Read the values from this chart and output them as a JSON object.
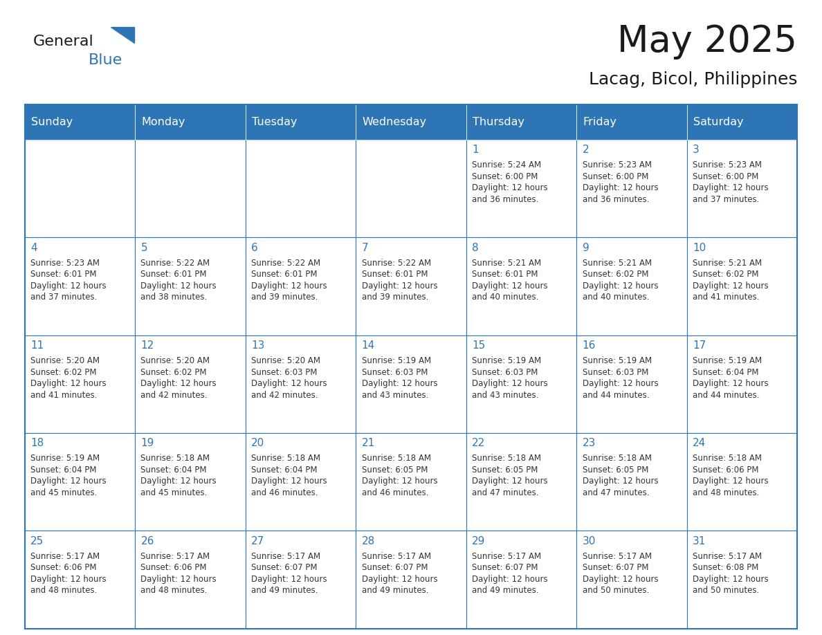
{
  "title": "May 2025",
  "subtitle": "Lacag, Bicol, Philippines",
  "days_of_week": [
    "Sunday",
    "Monday",
    "Tuesday",
    "Wednesday",
    "Thursday",
    "Friday",
    "Saturday"
  ],
  "header_bg": "#2E75B6",
  "header_text": "#FFFFFF",
  "cell_bg_light": "#FFFFFF",
  "grid_line_color": "#2E75B6",
  "day_number_color": "#2E75B6",
  "cell_text_color": "#333333",
  "title_color": "#1a1a1a",
  "weeks": [
    [
      {
        "day": null,
        "sunrise": null,
        "sunset": null,
        "daylight": null
      },
      {
        "day": null,
        "sunrise": null,
        "sunset": null,
        "daylight": null
      },
      {
        "day": null,
        "sunrise": null,
        "sunset": null,
        "daylight": null
      },
      {
        "day": null,
        "sunrise": null,
        "sunset": null,
        "daylight": null
      },
      {
        "day": 1,
        "sunrise": "5:24 AM",
        "sunset": "6:00 PM",
        "daylight": "12 hours and 36 minutes."
      },
      {
        "day": 2,
        "sunrise": "5:23 AM",
        "sunset": "6:00 PM",
        "daylight": "12 hours and 36 minutes."
      },
      {
        "day": 3,
        "sunrise": "5:23 AM",
        "sunset": "6:00 PM",
        "daylight": "12 hours and 37 minutes."
      }
    ],
    [
      {
        "day": 4,
        "sunrise": "5:23 AM",
        "sunset": "6:01 PM",
        "daylight": "12 hours and 37 minutes."
      },
      {
        "day": 5,
        "sunrise": "5:22 AM",
        "sunset": "6:01 PM",
        "daylight": "12 hours and 38 minutes."
      },
      {
        "day": 6,
        "sunrise": "5:22 AM",
        "sunset": "6:01 PM",
        "daylight": "12 hours and 39 minutes."
      },
      {
        "day": 7,
        "sunrise": "5:22 AM",
        "sunset": "6:01 PM",
        "daylight": "12 hours and 39 minutes."
      },
      {
        "day": 8,
        "sunrise": "5:21 AM",
        "sunset": "6:01 PM",
        "daylight": "12 hours and 40 minutes."
      },
      {
        "day": 9,
        "sunrise": "5:21 AM",
        "sunset": "6:02 PM",
        "daylight": "12 hours and 40 minutes."
      },
      {
        "day": 10,
        "sunrise": "5:21 AM",
        "sunset": "6:02 PM",
        "daylight": "12 hours and 41 minutes."
      }
    ],
    [
      {
        "day": 11,
        "sunrise": "5:20 AM",
        "sunset": "6:02 PM",
        "daylight": "12 hours and 41 minutes."
      },
      {
        "day": 12,
        "sunrise": "5:20 AM",
        "sunset": "6:02 PM",
        "daylight": "12 hours and 42 minutes."
      },
      {
        "day": 13,
        "sunrise": "5:20 AM",
        "sunset": "6:03 PM",
        "daylight": "12 hours and 42 minutes."
      },
      {
        "day": 14,
        "sunrise": "5:19 AM",
        "sunset": "6:03 PM",
        "daylight": "12 hours and 43 minutes."
      },
      {
        "day": 15,
        "sunrise": "5:19 AM",
        "sunset": "6:03 PM",
        "daylight": "12 hours and 43 minutes."
      },
      {
        "day": 16,
        "sunrise": "5:19 AM",
        "sunset": "6:03 PM",
        "daylight": "12 hours and 44 minutes."
      },
      {
        "day": 17,
        "sunrise": "5:19 AM",
        "sunset": "6:04 PM",
        "daylight": "12 hours and 44 minutes."
      }
    ],
    [
      {
        "day": 18,
        "sunrise": "5:19 AM",
        "sunset": "6:04 PM",
        "daylight": "12 hours and 45 minutes."
      },
      {
        "day": 19,
        "sunrise": "5:18 AM",
        "sunset": "6:04 PM",
        "daylight": "12 hours and 45 minutes."
      },
      {
        "day": 20,
        "sunrise": "5:18 AM",
        "sunset": "6:04 PM",
        "daylight": "12 hours and 46 minutes."
      },
      {
        "day": 21,
        "sunrise": "5:18 AM",
        "sunset": "6:05 PM",
        "daylight": "12 hours and 46 minutes."
      },
      {
        "day": 22,
        "sunrise": "5:18 AM",
        "sunset": "6:05 PM",
        "daylight": "12 hours and 47 minutes."
      },
      {
        "day": 23,
        "sunrise": "5:18 AM",
        "sunset": "6:05 PM",
        "daylight": "12 hours and 47 minutes."
      },
      {
        "day": 24,
        "sunrise": "5:18 AM",
        "sunset": "6:06 PM",
        "daylight": "12 hours and 48 minutes."
      }
    ],
    [
      {
        "day": 25,
        "sunrise": "5:17 AM",
        "sunset": "6:06 PM",
        "daylight": "12 hours and 48 minutes."
      },
      {
        "day": 26,
        "sunrise": "5:17 AM",
        "sunset": "6:06 PM",
        "daylight": "12 hours and 48 minutes."
      },
      {
        "day": 27,
        "sunrise": "5:17 AM",
        "sunset": "6:07 PM",
        "daylight": "12 hours and 49 minutes."
      },
      {
        "day": 28,
        "sunrise": "5:17 AM",
        "sunset": "6:07 PM",
        "daylight": "12 hours and 49 minutes."
      },
      {
        "day": 29,
        "sunrise": "5:17 AM",
        "sunset": "6:07 PM",
        "daylight": "12 hours and 49 minutes."
      },
      {
        "day": 30,
        "sunrise": "5:17 AM",
        "sunset": "6:07 PM",
        "daylight": "12 hours and 50 minutes."
      },
      {
        "day": 31,
        "sunrise": "5:17 AM",
        "sunset": "6:08 PM",
        "daylight": "12 hours and 50 minutes."
      }
    ]
  ]
}
